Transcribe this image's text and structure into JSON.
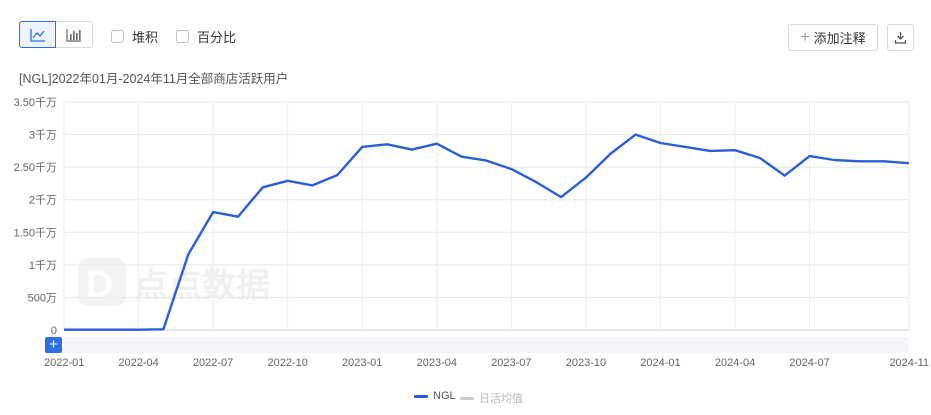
{
  "toolbar": {
    "line_icon": "line-chart-icon",
    "bar_icon": "bar-chart-icon",
    "stack_label": "堆积",
    "percent_label": "百分比",
    "annotate_label": "添加注释",
    "download_icon": "download-icon"
  },
  "colors": {
    "accent": "#2f6fe4",
    "line": "#2b5fd8",
    "inactive": "#cccccc",
    "grid": "#e8e8e8"
  },
  "add_button": "+",
  "legend": {
    "items": [
      {
        "label": "NGL",
        "color": "#2b5fd8",
        "active": true
      },
      {
        "label": "日活均值",
        "color": "#cccccc",
        "active": false
      }
    ]
  },
  "chart_data": {
    "type": "line",
    "title": "[NGL]2022年01月-2024年11月全部商店活跃用户",
    "x": [
      "2022-01",
      "2022-02",
      "2022-03",
      "2022-04",
      "2022-05",
      "2022-06",
      "2022-07",
      "2022-08",
      "2022-09",
      "2022-10",
      "2022-11",
      "2022-12",
      "2023-01",
      "2023-02",
      "2023-03",
      "2023-04",
      "2023-05",
      "2023-06",
      "2023-07",
      "2023-08",
      "2023-09",
      "2023-10",
      "2023-11",
      "2023-12",
      "2024-01",
      "2024-02",
      "2024-03",
      "2024-04",
      "2024-05",
      "2024-06",
      "2024-07",
      "2024-08",
      "2024-09",
      "2024-10",
      "2024-11"
    ],
    "xticks": [
      "2022-01",
      "2022-04",
      "2022-07",
      "2022-10",
      "2023-01",
      "2023-04",
      "2023-07",
      "2023-10",
      "2024-01",
      "2024-04",
      "2024-07",
      "2024-11"
    ],
    "ylim": [
      0,
      35000
    ],
    "yticks": [
      {
        "v": 0,
        "label": "0"
      },
      {
        "v": 5000,
        "label": "500万"
      },
      {
        "v": 10000,
        "label": "1千万"
      },
      {
        "v": 15000,
        "label": "1.50千万"
      },
      {
        "v": 20000,
        "label": "2千万"
      },
      {
        "v": 25000,
        "label": "2.50千万"
      },
      {
        "v": 30000,
        "label": "3千万"
      },
      {
        "v": 35000,
        "label": "3.50千万"
      }
    ],
    "series": [
      {
        "name": "NGL",
        "values": [
          50,
          50,
          50,
          50,
          100,
          11600,
          18100,
          17400,
          21900,
          22900,
          22200,
          23800,
          28100,
          28500,
          27700,
          28600,
          26600,
          26000,
          24700,
          22700,
          20400,
          23400,
          27100,
          30000,
          28700,
          28100,
          27500,
          27600,
          26400,
          23700,
          26700,
          26100,
          25900,
          25900,
          25600
        ]
      }
    ],
    "grid": true,
    "legend_position": "bottom-center"
  }
}
